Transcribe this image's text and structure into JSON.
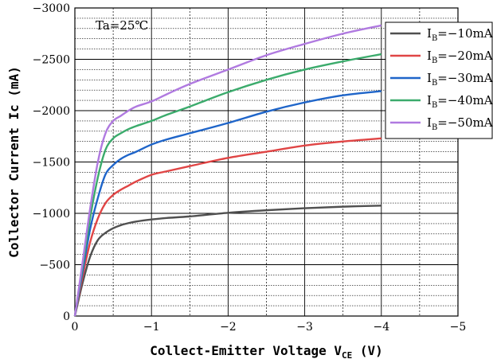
{
  "chart_data": {
    "type": "line",
    "xlabel_main": "Collect-Emitter Voltage V",
    "xlabel_sub": "CE",
    "xlabel_unit": " (V)",
    "ylabel": "Collector  Current Ic (mA)",
    "annotation": "Ta=25℃",
    "xlim": [
      0,
      -5
    ],
    "ylim": [
      0,
      -3000
    ],
    "x_ticks": [
      "0",
      "−1",
      "−2",
      "−3",
      "−4",
      "−5"
    ],
    "y_ticks": [
      "0",
      "−500",
      "−1000",
      "−1500",
      "−2000",
      "−2500",
      "−3000"
    ],
    "x": [
      0,
      -0.1,
      -0.2,
      -0.3,
      -0.4,
      -0.5,
      -0.6,
      -0.7,
      -0.8,
      -1.0,
      -1.2,
      -1.5,
      -2.0,
      -2.5,
      -3.0,
      -3.5,
      -4.0
    ],
    "series": [
      {
        "name_prefix": "I",
        "name_sub": "B",
        "name_suffix": "=−10mA",
        "color": "#505050",
        "values": [
          0,
          -320,
          -580,
          -740,
          -810,
          -855,
          -885,
          -905,
          -920,
          -940,
          -955,
          -970,
          -1005,
          -1030,
          -1050,
          -1065,
          -1075
        ]
      },
      {
        "name_prefix": "I",
        "name_sub": "B",
        "name_suffix": "=−20mA",
        "color": "#e04545",
        "values": [
          0,
          -380,
          -720,
          -950,
          -1100,
          -1180,
          -1230,
          -1270,
          -1310,
          -1375,
          -1410,
          -1460,
          -1540,
          -1600,
          -1660,
          -1700,
          -1730
        ]
      },
      {
        "name_prefix": "I",
        "name_sub": "B",
        "name_suffix": "=−30mA",
        "color": "#1f65c9",
        "values": [
          0,
          -430,
          -850,
          -1150,
          -1380,
          -1470,
          -1530,
          -1570,
          -1600,
          -1670,
          -1720,
          -1780,
          -1880,
          -1990,
          -2080,
          -2150,
          -2190
        ]
      },
      {
        "name_prefix": "I",
        "name_sub": "B",
        "name_suffix": "=−40mA",
        "color": "#3bab6c",
        "values": [
          0,
          -480,
          -960,
          -1350,
          -1620,
          -1730,
          -1780,
          -1820,
          -1850,
          -1900,
          -1960,
          -2040,
          -2180,
          -2300,
          -2400,
          -2480,
          -2550
        ]
      },
      {
        "name_prefix": "I",
        "name_sub": "B",
        "name_suffix": "=−50mA",
        "color": "#b07ae0",
        "values": [
          0,
          -520,
          -1050,
          -1500,
          -1780,
          -1900,
          -1950,
          -2000,
          -2040,
          -2090,
          -2160,
          -2260,
          -2400,
          -2540,
          -2650,
          -2750,
          -2830
        ]
      }
    ],
    "grid": true,
    "legend_position": "top-right"
  }
}
